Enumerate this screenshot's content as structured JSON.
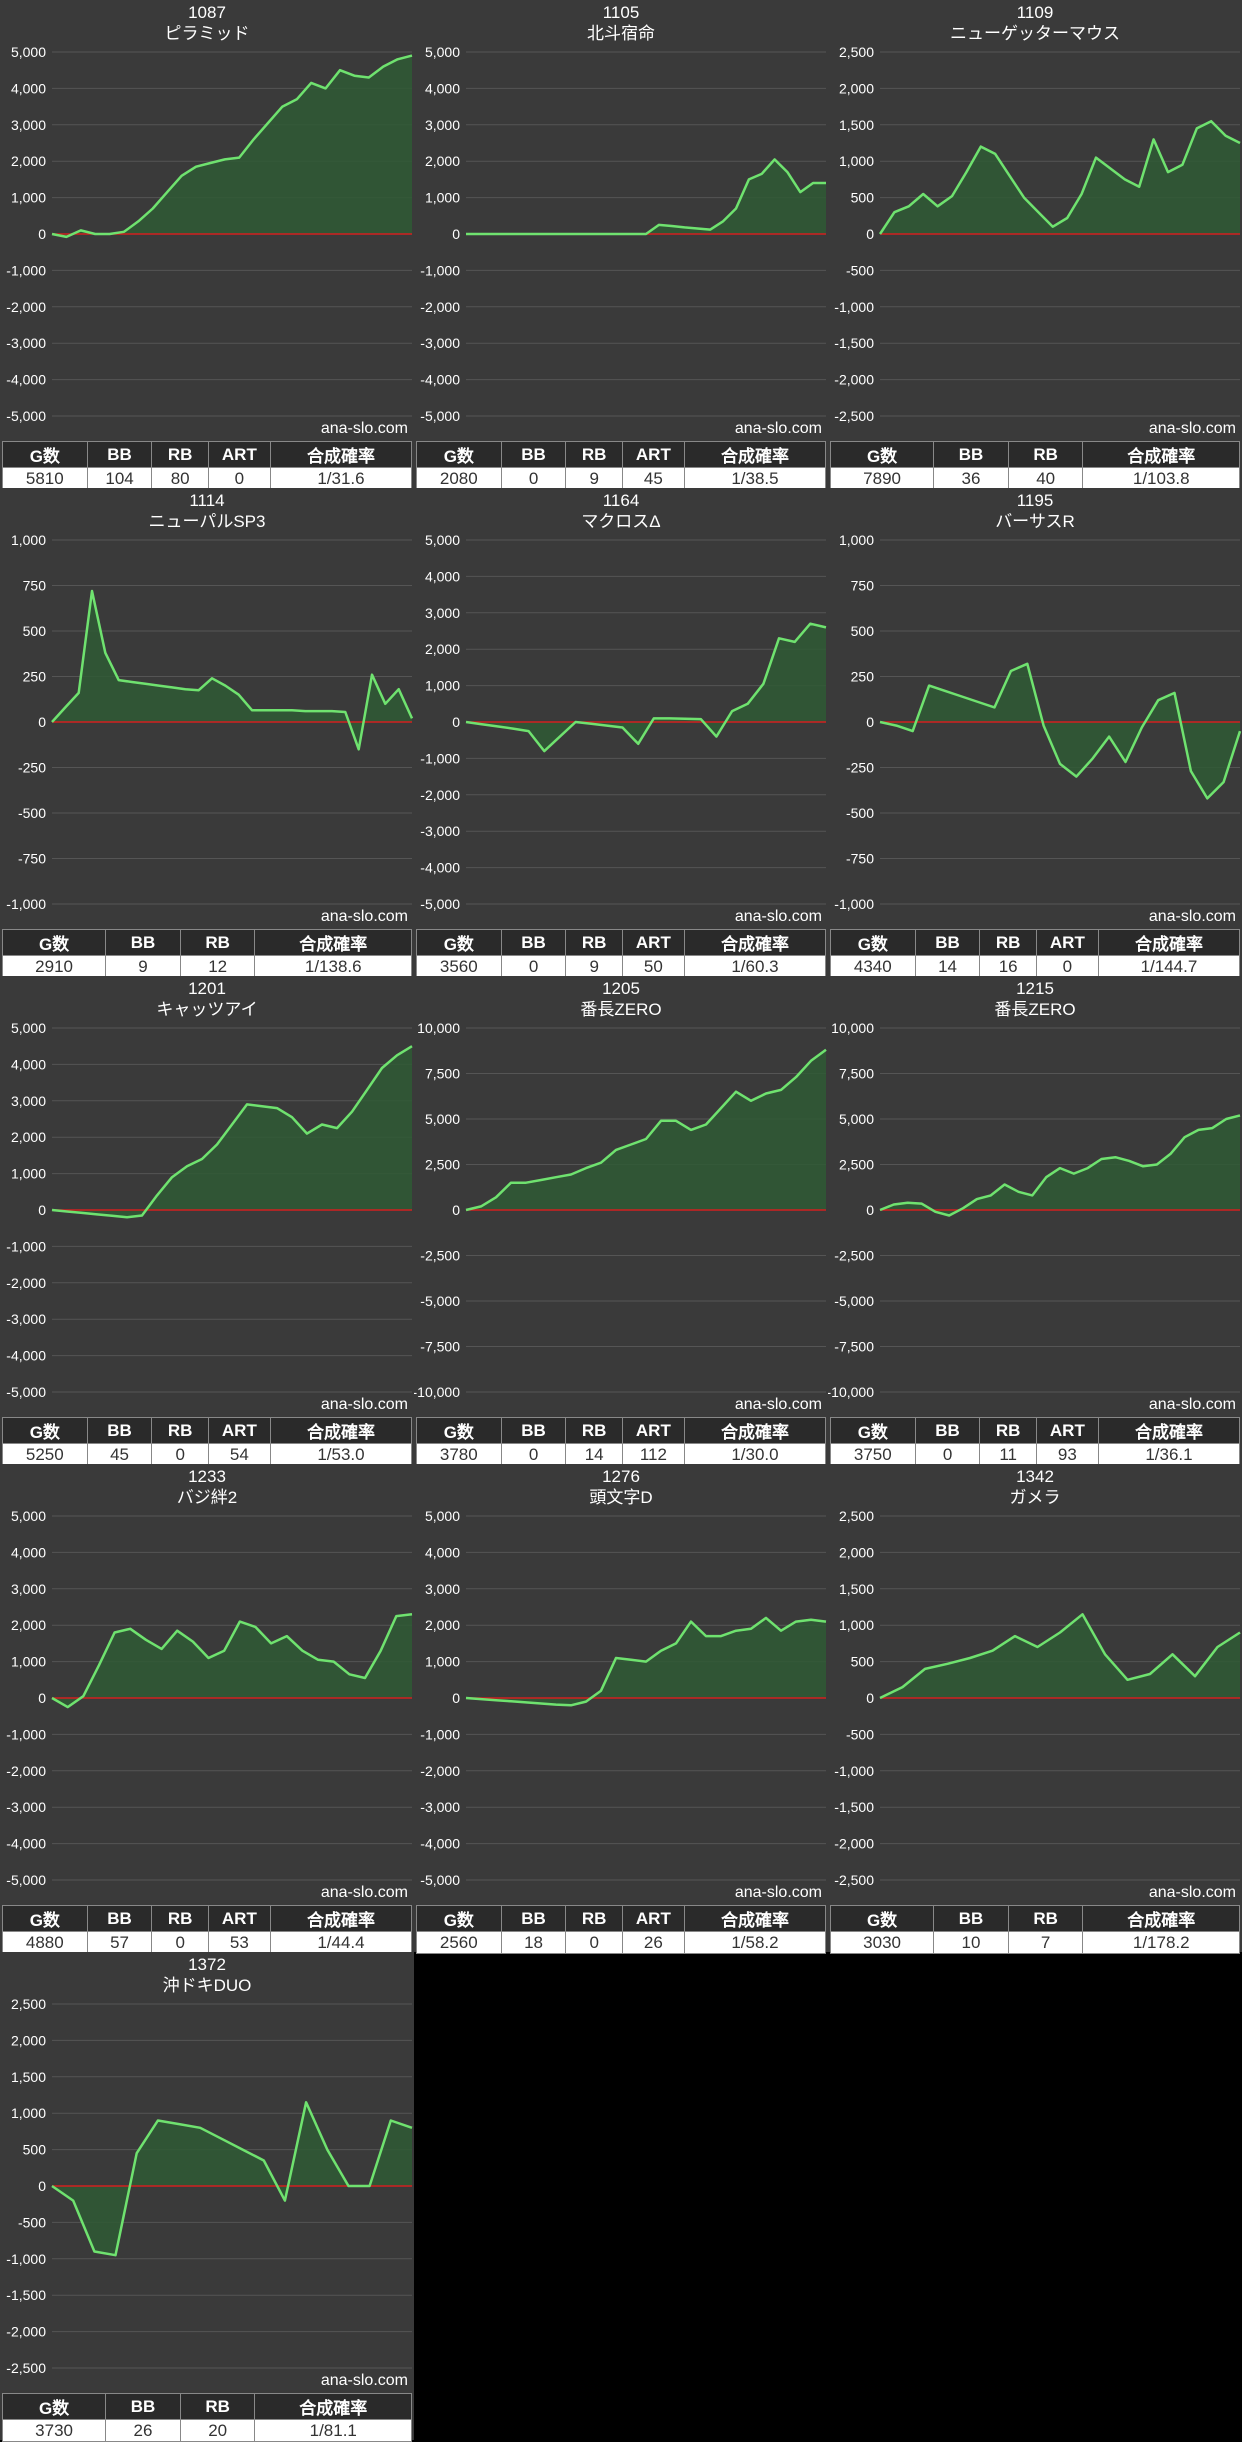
{
  "site": "ana-slo.com",
  "header_labels": {
    "g": "G数",
    "bb": "BB",
    "rb": "RB",
    "art": "ART",
    "prob": "合成確率"
  },
  "colors": {
    "bg": "#3a3a3a",
    "line": "#6fe26f",
    "fill": "#2f5a35",
    "zero": "#d12020",
    "grid": "#555555",
    "text": "#ffffff"
  },
  "chart_data": [
    {
      "type": "area",
      "title": "1087",
      "subtitle": "ピラミッド",
      "ylim": [
        -5000,
        5000
      ],
      "yticks": [
        -5000,
        -4000,
        -3000,
        -2000,
        -1000,
        0,
        1000,
        2000,
        3000,
        4000,
        5000
      ],
      "values": [
        0,
        -80,
        100,
        0,
        0,
        60,
        350,
        700,
        1150,
        1600,
        1850,
        1950,
        2050,
        2100,
        2600,
        3050,
        3500,
        3700,
        4150,
        4000,
        4500,
        4350,
        4300,
        4600,
        4800,
        4900
      ],
      "stats": {
        "g": "5810",
        "bb": "104",
        "rb": "80",
        "art": "0",
        "prob": "1/31.6"
      }
    },
    {
      "type": "area",
      "title": "1105",
      "subtitle": "北斗宿命",
      "ylim": [
        -5000,
        5000
      ],
      "yticks": [
        -5000,
        -4000,
        -3000,
        -2000,
        -1000,
        0,
        1000,
        2000,
        3000,
        4000,
        5000
      ],
      "values": [
        0,
        0,
        0,
        0,
        0,
        0,
        0,
        0,
        0,
        0,
        0,
        0,
        0,
        0,
        0,
        250,
        220,
        180,
        150,
        120,
        350,
        700,
        1500,
        1650,
        2050,
        1700,
        1150,
        1400,
        1400
      ],
      "stats": {
        "g": "2080",
        "bb": "0",
        "rb": "9",
        "art": "45",
        "prob": "1/38.5"
      }
    },
    {
      "type": "area",
      "title": "1109",
      "subtitle": "ニューゲッターマウス",
      "ylim": [
        -2500,
        2500
      ],
      "yticks": [
        -2500,
        -2000,
        -1500,
        -1000,
        -500,
        0,
        500,
        1000,
        1500,
        2000,
        2500
      ],
      "values": [
        0,
        300,
        380,
        550,
        380,
        520,
        850,
        1200,
        1100,
        800,
        500,
        300,
        100,
        220,
        550,
        1050,
        900,
        750,
        650,
        1300,
        850,
        950,
        1450,
        1550,
        1350,
        1250
      ],
      "stats": {
        "g": "7890",
        "bb": "36",
        "rb": "40",
        "prob": "1/103.8"
      }
    },
    {
      "type": "area",
      "title": "1114",
      "subtitle": "ニューパルSP3",
      "ylim": [
        -1000,
        1000
      ],
      "yticks": [
        -1000,
        -750,
        -500,
        -250,
        0,
        250,
        500,
        750,
        1000
      ],
      "values": [
        0,
        80,
        160,
        720,
        380,
        230,
        220,
        210,
        200,
        190,
        180,
        175,
        240,
        200,
        150,
        65,
        65,
        65,
        65,
        60,
        60,
        60,
        55,
        -150,
        260,
        100,
        180,
        20
      ],
      "stats": {
        "g": "2910",
        "bb": "9",
        "rb": "12",
        "prob": "1/138.6"
      }
    },
    {
      "type": "area",
      "title": "1164",
      "subtitle": "マクロスΔ",
      "ylim": [
        -5000,
        5000
      ],
      "yticks": [
        -5000,
        -4000,
        -3000,
        -2000,
        -1000,
        0,
        1000,
        2000,
        3000,
        4000,
        5000
      ],
      "values": [
        0,
        -60,
        -120,
        -180,
        -250,
        -800,
        -400,
        0,
        -50,
        -100,
        -150,
        -600,
        100,
        100,
        90,
        80,
        -400,
        300,
        500,
        1050,
        2300,
        2200,
        2700,
        2600
      ],
      "stats": {
        "g": "3560",
        "bb": "0",
        "rb": "9",
        "art": "50",
        "prob": "1/60.3"
      }
    },
    {
      "type": "area",
      "title": "1195",
      "subtitle": "バーサスR",
      "ylim": [
        -1000,
        1000
      ],
      "yticks": [
        -1000,
        -750,
        -500,
        -250,
        0,
        250,
        500,
        750,
        1000
      ],
      "values": [
        0,
        -20,
        -50,
        200,
        170,
        140,
        110,
        80,
        280,
        320,
        -20,
        -230,
        -300,
        -200,
        -80,
        -220,
        -30,
        120,
        160,
        -270,
        -420,
        -330,
        -50
      ],
      "stats": {
        "g": "4340",
        "bb": "14",
        "rb": "16",
        "art": "0",
        "prob": "1/144.7"
      }
    },
    {
      "type": "area",
      "title": "1201",
      "subtitle": "キャッツアイ",
      "ylim": [
        -5000,
        5000
      ],
      "yticks": [
        -5000,
        -4000,
        -3000,
        -2000,
        -1000,
        0,
        1000,
        2000,
        3000,
        4000,
        5000
      ],
      "values": [
        0,
        -40,
        -80,
        -120,
        -160,
        -200,
        -150,
        400,
        900,
        1200,
        1400,
        1800,
        2350,
        2900,
        2850,
        2800,
        2550,
        2100,
        2350,
        2250,
        2700,
        3300,
        3900,
        4250,
        4500
      ],
      "stats": {
        "g": "5250",
        "bb": "45",
        "rb": "0",
        "art": "54",
        "prob": "1/53.0"
      }
    },
    {
      "type": "area",
      "title": "1205",
      "subtitle": "番長ZERO",
      "ylim": [
        -10000,
        10000
      ],
      "yticks": [
        -10000,
        -7500,
        -5000,
        -2500,
        0,
        2500,
        5000,
        7500,
        10000
      ],
      "values": [
        0,
        200,
        700,
        1500,
        1500,
        1650,
        1800,
        1950,
        2300,
        2600,
        3300,
        3600,
        3900,
        4900,
        4900,
        4400,
        4700,
        5600,
        6500,
        6000,
        6400,
        6600,
        7300,
        8200,
        8800
      ],
      "stats": {
        "g": "3780",
        "bb": "0",
        "rb": "14",
        "art": "112",
        "prob": "1/30.0"
      }
    },
    {
      "type": "area",
      "title": "1215",
      "subtitle": "番長ZERO",
      "ylim": [
        -10000,
        10000
      ],
      "yticks": [
        -10000,
        -7500,
        -5000,
        -2500,
        0,
        2500,
        5000,
        7500,
        10000
      ],
      "values": [
        0,
        300,
        400,
        350,
        -100,
        -300,
        100,
        600,
        800,
        1400,
        1000,
        800,
        1800,
        2300,
        2000,
        2300,
        2800,
        2900,
        2700,
        2400,
        2500,
        3100,
        4000,
        4400,
        4500,
        5000,
        5200
      ],
      "stats": {
        "g": "3750",
        "bb": "0",
        "rb": "11",
        "art": "93",
        "prob": "1/36.1"
      }
    },
    {
      "type": "area",
      "title": "1233",
      "subtitle": "バジ絆2",
      "ylim": [
        -5000,
        5000
      ],
      "yticks": [
        -5000,
        -4000,
        -3000,
        -2000,
        -1000,
        0,
        1000,
        2000,
        3000,
        4000,
        5000
      ],
      "values": [
        0,
        -250,
        50,
        900,
        1800,
        1900,
        1600,
        1350,
        1850,
        1550,
        1100,
        1300,
        2100,
        1950,
        1500,
        1700,
        1300,
        1050,
        1000,
        650,
        550,
        1300,
        2250,
        2300
      ],
      "stats": {
        "g": "4880",
        "bb": "57",
        "rb": "0",
        "art": "53",
        "prob": "1/44.4"
      }
    },
    {
      "type": "area",
      "title": "1276",
      "subtitle": "頭文字D",
      "ylim": [
        -5000,
        5000
      ],
      "yticks": [
        -5000,
        -4000,
        -3000,
        -2000,
        -1000,
        0,
        1000,
        2000,
        3000,
        4000,
        5000
      ],
      "values": [
        0,
        -30,
        -60,
        -90,
        -120,
        -150,
        -180,
        -200,
        -100,
        200,
        1100,
        1050,
        1000,
        1300,
        1500,
        2100,
        1700,
        1700,
        1850,
        1900,
        2200,
        1850,
        2100,
        2150,
        2100
      ],
      "stats": {
        "g": "2560",
        "bb": "18",
        "rb": "0",
        "art": "26",
        "prob": "1/58.2"
      }
    },
    {
      "type": "area",
      "title": "1342",
      "subtitle": "ガメラ",
      "ylim": [
        -2500,
        2500
      ],
      "yticks": [
        -2500,
        -2000,
        -1500,
        -1000,
        -500,
        0,
        500,
        1000,
        1500,
        2000,
        2500
      ],
      "values": [
        0,
        150,
        400,
        470,
        550,
        650,
        850,
        700,
        900,
        1150,
        600,
        250,
        330,
        600,
        300,
        700,
        900
      ],
      "stats": {
        "g": "3030",
        "bb": "10",
        "rb": "7",
        "prob": "1/178.2"
      }
    },
    {
      "type": "area",
      "title": "1372",
      "subtitle": "沖ドキDUO",
      "ylim": [
        -2500,
        2500
      ],
      "yticks": [
        -2500,
        -2000,
        -1500,
        -1000,
        -500,
        0,
        500,
        1000,
        1500,
        2000,
        2500
      ],
      "values": [
        0,
        -200,
        -900,
        -950,
        450,
        900,
        850,
        800,
        650,
        500,
        350,
        -200,
        1150,
        500,
        0,
        0,
        900,
        800
      ],
      "stats": {
        "g": "3730",
        "bb": "26",
        "rb": "20",
        "prob": "1/81.1"
      }
    }
  ]
}
